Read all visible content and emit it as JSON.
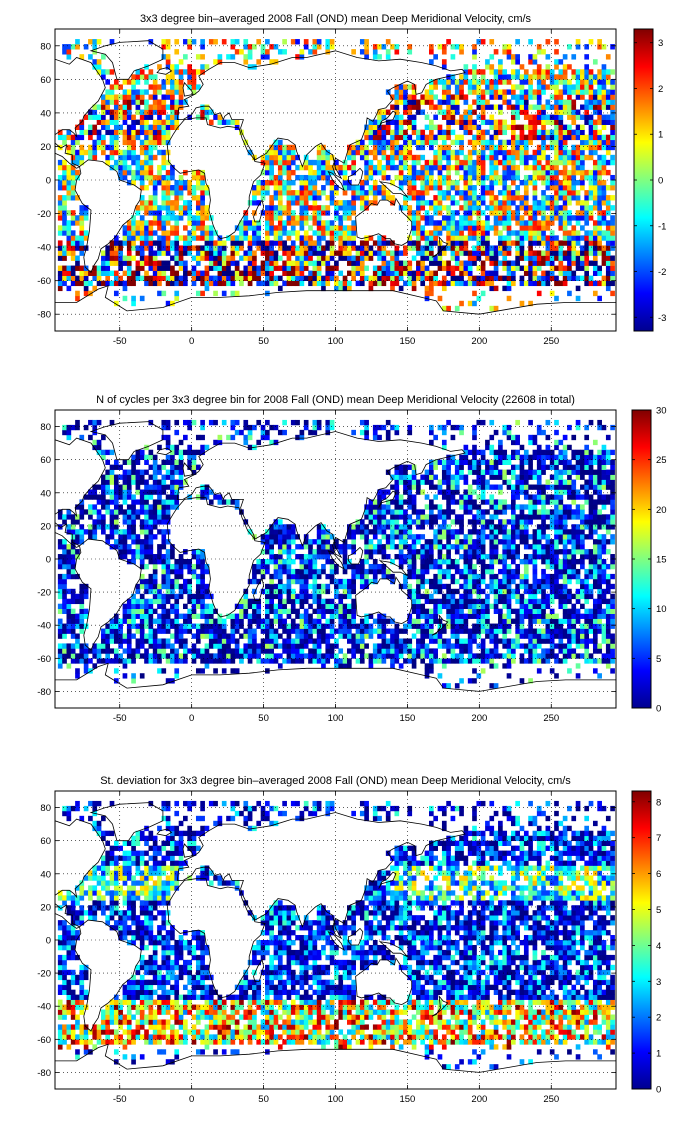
{
  "figure": {
    "panels": [
      {
        "title": "3x3 degree bin–averaged 2008 Fall (OND) mean Deep Meridional Velocity, cm/s",
        "colorbar_ticks": [
          "3",
          "2",
          "1",
          "0",
          "-1",
          "-2",
          "-3"
        ]
      },
      {
        "title": "N of cycles per 3x3 degree bin for 2008 Fall (OND) mean Deep Meridional Velocity (22608 in total)",
        "colorbar_ticks": [
          "30",
          "25",
          "20",
          "15",
          "10",
          "5",
          "0"
        ]
      },
      {
        "title": "St. deviation for 3x3 degree bin–averaged 2008 Fall (OND) mean Deep Meridional Velocity, cm/s",
        "colorbar_ticks": [
          "8",
          "7",
          "6",
          "5",
          "4",
          "3",
          "2",
          "1",
          "0"
        ]
      }
    ],
    "x_ticks": [
      "-50",
      "0",
      "50",
      "100",
      "150",
      "200",
      "250"
    ],
    "y_ticks": [
      "80",
      "60",
      "40",
      "20",
      "0",
      "-20",
      "-40",
      "-60",
      "-80"
    ],
    "colormap": "jet",
    "grid": true
  },
  "chart_data": [
    {
      "type": "heatmap",
      "title": "3x3 degree bin–averaged 2008 Fall (OND) mean Deep Meridional Velocity, cm/s",
      "xlabel": "",
      "ylabel": "",
      "xlim": [
        -95,
        295
      ],
      "ylim": [
        -90,
        90
      ],
      "xticks": [
        -50,
        0,
        50,
        100,
        150,
        200,
        250
      ],
      "yticks": [
        80,
        60,
        40,
        20,
        0,
        -20,
        -40,
        -60,
        -80
      ],
      "bin_size_deg": 3,
      "color_range": [
        -3.3,
        3.3
      ],
      "colorbar_ticks": [
        3,
        2,
        1,
        0,
        -1,
        -2,
        -3
      ],
      "units": "cm/s"
    },
    {
      "type": "heatmap",
      "title": "N of cycles per 3x3 degree bin for 2008 Fall (OND) mean Deep Meridional Velocity (22608 in total)",
      "xlabel": "",
      "ylabel": "",
      "xlim": [
        -95,
        295
      ],
      "ylim": [
        -90,
        90
      ],
      "xticks": [
        -50,
        0,
        50,
        100,
        150,
        200,
        250
      ],
      "yticks": [
        80,
        60,
        40,
        20,
        0,
        -20,
        -40,
        -60,
        -80
      ],
      "bin_size_deg": 3,
      "color_range": [
        0,
        30
      ],
      "colorbar_ticks": [
        30,
        25,
        20,
        15,
        10,
        5,
        0
      ],
      "total": 22608
    },
    {
      "type": "heatmap",
      "title": "St. deviation for 3x3 degree bin–averaged 2008 Fall (OND) mean Deep Meridional Velocity, cm/s",
      "xlabel": "",
      "ylabel": "",
      "xlim": [
        -95,
        295
      ],
      "ylim": [
        -90,
        90
      ],
      "xticks": [
        -50,
        0,
        50,
        100,
        150,
        200,
        250
      ],
      "yticks": [
        80,
        60,
        40,
        20,
        0,
        -20,
        -40,
        -60,
        -80
      ],
      "bin_size_deg": 3,
      "color_range": [
        0,
        8.3
      ],
      "colorbar_ticks": [
        8,
        7,
        6,
        5,
        4,
        3,
        2,
        1,
        0
      ],
      "units": "cm/s"
    }
  ]
}
